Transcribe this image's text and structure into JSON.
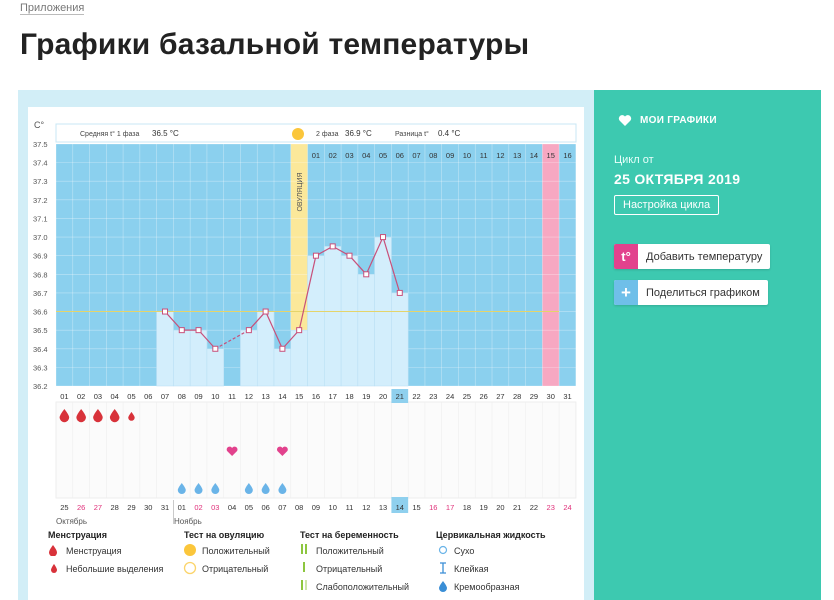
{
  "breadcrumb": "Приложения",
  "title": "Графики базальной температуры",
  "chart_header": {
    "unit": "C°",
    "phase1_label": "Средняя t° 1 фаза",
    "phase1_value": "36.5 °C",
    "phase2_label": "2 фаза",
    "phase2_value": "36.9 °C",
    "diff_label": "Разница t°",
    "diff_value": "0.4 °C",
    "ovulation_label": "ОВУЛЯЦИЯ"
  },
  "y_ticks": [
    "37.5",
    "37.4",
    "37.3",
    "37.2",
    "37.1",
    "37.0",
    "36.9",
    "36.8",
    "36.7",
    "36.6",
    "36.5",
    "36.4",
    "36.3",
    "36.2"
  ],
  "cycle_days": [
    "01",
    "02",
    "03",
    "04",
    "05",
    "06",
    "07",
    "08",
    "09",
    "10",
    "11",
    "12",
    "13",
    "14",
    "15",
    "16",
    "17",
    "18",
    "19",
    "20",
    "21",
    "22",
    "23",
    "24",
    "25",
    "26",
    "27",
    "28",
    "29",
    "30",
    "31"
  ],
  "phase2_days": [
    "01",
    "02",
    "03",
    "04",
    "05",
    "06",
    "07",
    "08",
    "09",
    "10",
    "11",
    "12",
    "13",
    "14",
    "15",
    "16"
  ],
  "dates": [
    "25",
    "26",
    "27",
    "28",
    "29",
    "30",
    "31",
    "01",
    "02",
    "03",
    "04",
    "05",
    "06",
    "07",
    "08",
    "09",
    "10",
    "11",
    "12",
    "13",
    "14",
    "15",
    "16",
    "17",
    "18",
    "19",
    "20",
    "21",
    "22",
    "23",
    "24"
  ],
  "month_oct": "Октябрь",
  "month_nov": "Ноябрь",
  "chart_data": {
    "type": "line",
    "ylim": [
      36.2,
      37.5
    ],
    "x_label_unit": "C°",
    "days": [
      7,
      8,
      9,
      10,
      12,
      13,
      14,
      15,
      16,
      17,
      18,
      19,
      20,
      21
    ],
    "temps": [
      36.6,
      36.5,
      36.5,
      36.4,
      36.5,
      36.6,
      36.4,
      36.5,
      36.9,
      36.95,
      36.9,
      36.8,
      37.0,
      36.7
    ],
    "coverline": 36.6,
    "ovulation_day": 15,
    "today_day": 21,
    "menstruation_days": [
      1,
      2,
      3,
      4
    ],
    "light_discharge_days": [
      5
    ],
    "pregnancy_test_positive_day": 30,
    "cervical_fluid_days": [
      8,
      9,
      10,
      12,
      13,
      14
    ],
    "sex_days": [
      11,
      14
    ]
  },
  "sidebar": {
    "title": "МОИ ГРАФИКИ",
    "cycle_label": "Цикл от",
    "cycle_date": "25 ОКТЯБРЯ 2019",
    "cycle_settings": "Настройка цикла",
    "add_temp_icon": "t°",
    "add_temp": "Добавить температуру",
    "share_icon": "+",
    "share": "Поделиться графиком"
  },
  "legend": {
    "menstruation": {
      "title": "Менструация",
      "items": [
        "Менструация",
        "Небольшие выделения"
      ]
    },
    "ovulation_test": {
      "title": "Тест на овуляцию",
      "items": [
        "Положительный",
        "Отрицательный"
      ]
    },
    "pregnancy_test": {
      "title": "Тест на беременность",
      "items": [
        "Положительный",
        "Отрицательный",
        "Слабоположительный"
      ]
    },
    "cervical": {
      "title": "Цервикальная жидкость",
      "items": [
        "Сухо",
        "Клейкая",
        "Кремообразная"
      ]
    }
  },
  "colors": {
    "sky": "#8bd0ee",
    "bar": "#d3eefc",
    "line": "#c8507a",
    "ovulation": "#fbe89a",
    "pregnancy": "#f7a8c2",
    "sidebar": "#3dc9b0",
    "drop": "#d8323a",
    "heart": "#e2428d",
    "cervical": "#6ab4e8"
  }
}
